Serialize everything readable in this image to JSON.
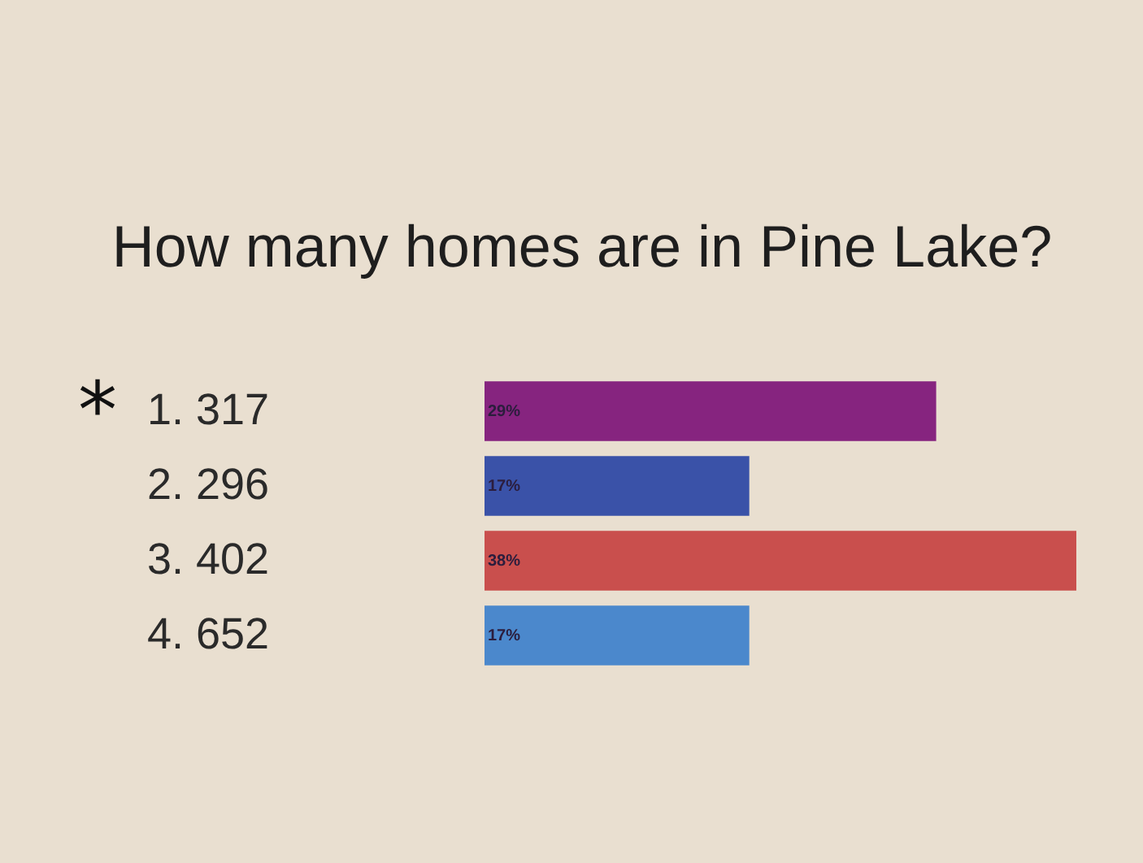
{
  "chart_data": {
    "type": "bar",
    "orientation": "horizontal",
    "title": "How many homes are in Pine Lake?",
    "categories": [
      "1.  317",
      "2.  296",
      "3.  402",
      "4.  652"
    ],
    "values": [
      29,
      17,
      38,
      17
    ],
    "colors": [
      "#86247f",
      "#3a52a8",
      "#c94f4d",
      "#4b88cc"
    ],
    "value_labels": [
      "29%",
      "17%",
      "38%",
      "17%"
    ],
    "annotations": [
      "*"
    ]
  }
}
